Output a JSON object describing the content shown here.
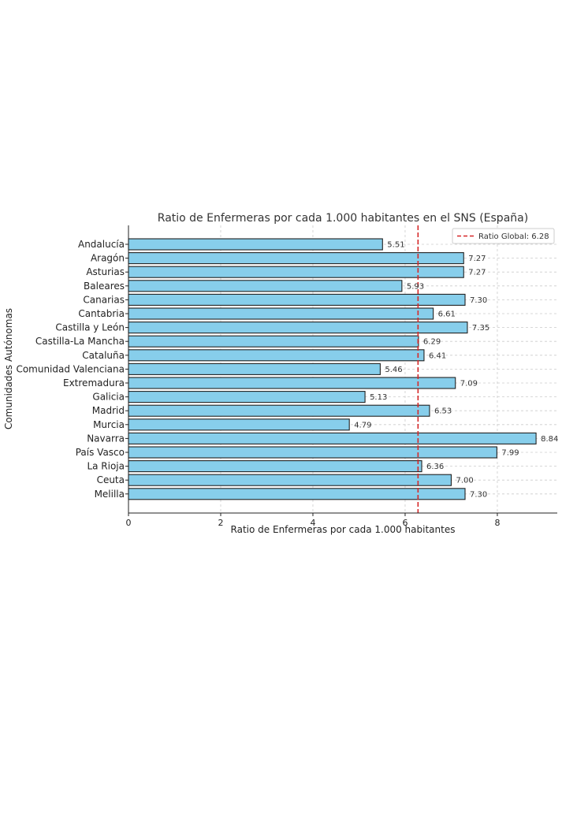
{
  "chart_data": {
    "type": "bar",
    "orientation": "horizontal",
    "title": "Ratio de Enfermeras por cada 1.000 habitantes en el SNS (España)",
    "xlabel": "Ratio de Enfermeras por cada 1.000 habitantes",
    "ylabel": "Comunidades Autónomas",
    "xlim": [
      0,
      9.3
    ],
    "xticks": [
      0,
      2,
      4,
      6,
      8
    ],
    "grid": true,
    "categories": [
      "Andalucía",
      "Aragón",
      "Asturias",
      "Baleares",
      "Canarias",
      "Cantabria",
      "Castilla y León",
      "Castilla-La Mancha",
      "Cataluña",
      "Comunidad Valenciana",
      "Extremadura",
      "Galicia",
      "Madrid",
      "Murcia",
      "Navarra",
      "País Vasco",
      "La Rioja",
      "Ceuta",
      "Melilla"
    ],
    "values": [
      5.51,
      7.27,
      7.27,
      5.93,
      7.3,
      6.61,
      7.35,
      6.29,
      6.41,
      5.46,
      7.09,
      5.13,
      6.53,
      4.79,
      8.84,
      7.99,
      6.36,
      7.0,
      7.3
    ],
    "value_labels": [
      "5.51",
      "7.27",
      "7.27",
      "5.93",
      "7.30",
      "6.61",
      "7.35",
      "6.29",
      "6.41",
      "5.46",
      "7.09",
      "5.13",
      "6.53",
      "4.79",
      "8.84",
      "7.99",
      "6.36",
      "7.00",
      "7.30"
    ],
    "reference_line": {
      "value": 6.28,
      "label": "Ratio Global: 6.28",
      "color": "#d62728",
      "style": "dashed"
    },
    "legend_position": "top-right",
    "colors": {
      "bar_fill": "#87ceeb",
      "bar_edge": "#222222",
      "grid": "#cccccc"
    }
  }
}
